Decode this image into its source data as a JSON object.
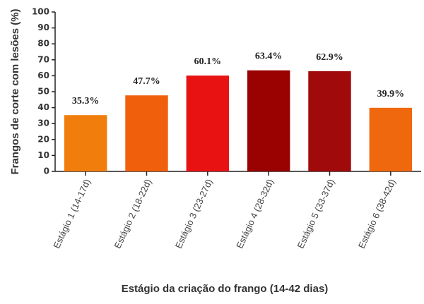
{
  "chart_data": {
    "type": "bar",
    "categories": [
      "Estágio 1 (14-17d)",
      "Estágio 2 (18-22d)",
      "Estágio 3 (23-27d)",
      "Estágio 4 (28-32d)",
      "Estágio 5 (33-37d)",
      "Estágio 6 (38-42d)"
    ],
    "values": [
      35.3,
      47.7,
      60.1,
      63.4,
      62.9,
      39.9
    ],
    "value_labels": [
      "35.3%",
      "47.7%",
      "60.1%",
      "63.4%",
      "62.9%",
      "39.9%"
    ],
    "colors": [
      "#f07d0c",
      "#f0600c",
      "#e81212",
      "#9a0202",
      "#a00a0a",
      "#f0680e"
    ],
    "ylim": [
      0,
      100
    ],
    "yticks": [
      0,
      10,
      20,
      30,
      40,
      50,
      60,
      70,
      80,
      90,
      100
    ],
    "y_label": "Frangos de corte com lesões (%)",
    "x_label": "Estágio da criação do frango (14-42 dias)"
  }
}
